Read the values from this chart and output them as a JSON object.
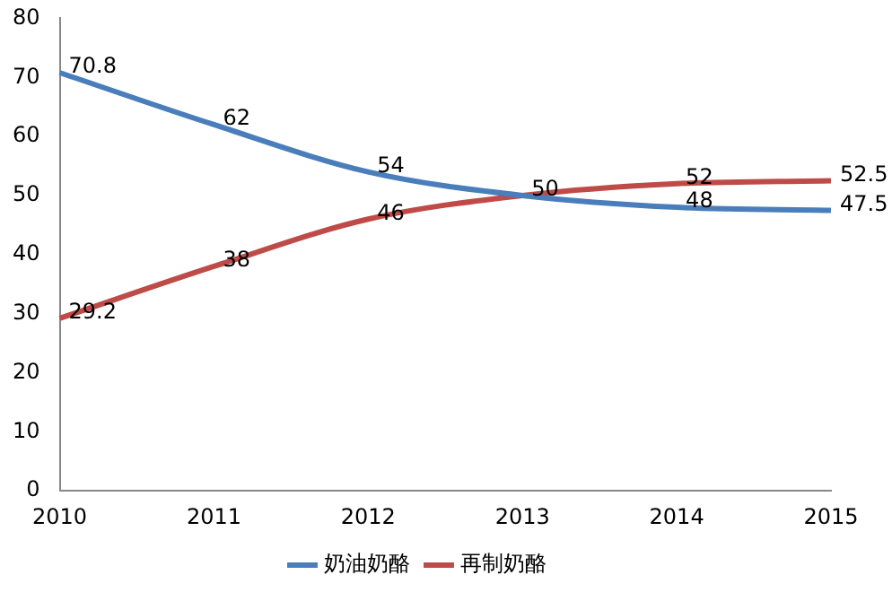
{
  "chart_data": {
    "type": "line",
    "categories": [
      "2010",
      "2011",
      "2012",
      "2013",
      "2014",
      "2015"
    ],
    "series": [
      {
        "name": "奶油奶酪",
        "color": "#4a7ebb",
        "values": [
          70.8,
          62,
          54,
          50,
          48,
          47.5
        ],
        "value_labels": [
          "70.8",
          "62",
          "54",
          "50",
          "48",
          "47.5"
        ]
      },
      {
        "name": "再制奶酪",
        "color": "#be4b48",
        "values": [
          29.2,
          38,
          46,
          50,
          52,
          52.5
        ],
        "value_labels": [
          "29.2",
          "38",
          "46",
          null,
          "52",
          "52.5"
        ]
      }
    ],
    "ylim": [
      0,
      80
    ],
    "yticks": [
      0,
      10,
      20,
      30,
      40,
      50,
      60,
      70,
      80
    ],
    "grid": false,
    "legend": "bottom",
    "marker": "none",
    "line_style": "solid"
  }
}
